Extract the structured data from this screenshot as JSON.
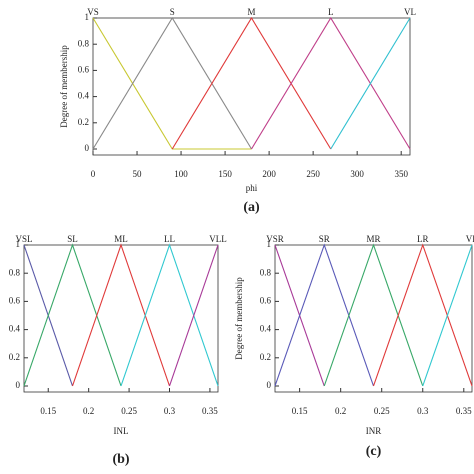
{
  "chart_data": [
    {
      "type": "line",
      "caption": "(a)",
      "x_label": "phi",
      "y_label": "Degree of membership",
      "xlim": [
        0,
        360
      ],
      "xticks": [
        0,
        50,
        100,
        150,
        200,
        250,
        300,
        350
      ],
      "ylim": [
        0,
        1
      ],
      "yticks": [
        0,
        0.2,
        0.4,
        0.6,
        0.8,
        1
      ],
      "series": [
        {
          "name": "VS",
          "color": "#c8c832",
          "x": [
            0,
            90,
            180
          ],
          "values": [
            1,
            0,
            0
          ]
        },
        {
          "name": "S",
          "color": "#8a8a8a",
          "x": [
            0,
            90,
            180
          ],
          "values": [
            0,
            1,
            0
          ]
        },
        {
          "name": "M",
          "color": "#e03a3a",
          "x": [
            90,
            180,
            270
          ],
          "values": [
            0,
            1,
            0
          ]
        },
        {
          "name": "L",
          "color": "#c0408a",
          "x": [
            180,
            270,
            360
          ],
          "values": [
            0,
            1,
            0
          ]
        },
        {
          "name": "VL",
          "color": "#30c0d0",
          "x": [
            270,
            360
          ],
          "values": [
            0,
            1
          ]
        }
      ]
    },
    {
      "type": "line",
      "caption": "(b)",
      "x_label": "INL",
      "xlim": [
        0.12,
        0.36
      ],
      "xticks": [
        0.15,
        0.2,
        0.25,
        0.3,
        0.35
      ],
      "ylim": [
        0,
        1
      ],
      "yticks": [
        0,
        0.2,
        0.4,
        0.6,
        0.8,
        1
      ],
      "series": [
        {
          "name": "VSL",
          "color": "#5a5aa8",
          "x": [
            0.12,
            0.18
          ],
          "values": [
            1,
            0
          ]
        },
        {
          "name": "SL",
          "color": "#38a868",
          "x": [
            0.12,
            0.18,
            0.24
          ],
          "values": [
            0,
            1,
            0
          ]
        },
        {
          "name": "ML",
          "color": "#e03a3a",
          "x": [
            0.18,
            0.24,
            0.3
          ],
          "values": [
            0,
            1,
            0
          ]
        },
        {
          "name": "LL",
          "color": "#30c8d0",
          "x": [
            0.24,
            0.3,
            0.36
          ],
          "values": [
            0,
            1,
            0
          ]
        },
        {
          "name": "VLL",
          "color": "#a83a98",
          "x": [
            0.3,
            0.36
          ],
          "values": [
            0,
            1
          ]
        }
      ]
    },
    {
      "type": "line",
      "caption": "(c)",
      "x_label": "INR",
      "y_label": "Degree of membership",
      "xlim": [
        0.12,
        0.36
      ],
      "xticks": [
        0.15,
        0.2,
        0.25,
        0.3,
        0.35
      ],
      "ylim": [
        0,
        1
      ],
      "yticks": [
        0,
        0.2,
        0.4,
        0.6,
        0.8,
        1
      ],
      "series": [
        {
          "name": "VSR",
          "color": "#a83a98",
          "x": [
            0.12,
            0.18
          ],
          "values": [
            1,
            0
          ]
        },
        {
          "name": "SR",
          "color": "#5a5ab8",
          "x": [
            0.12,
            0.18,
            0.24
          ],
          "values": [
            0,
            1,
            0
          ]
        },
        {
          "name": "MR",
          "color": "#38a868",
          "x": [
            0.18,
            0.24,
            0.3
          ],
          "values": [
            0,
            1,
            0
          ]
        },
        {
          "name": "LR",
          "color": "#e03a3a",
          "x": [
            0.24,
            0.3,
            0.36
          ],
          "values": [
            0,
            1,
            0
          ]
        },
        {
          "name": "VR",
          "color": "#30c8d0",
          "x": [
            0.3,
            0.36
          ],
          "values": [
            0,
            1
          ]
        }
      ]
    }
  ]
}
